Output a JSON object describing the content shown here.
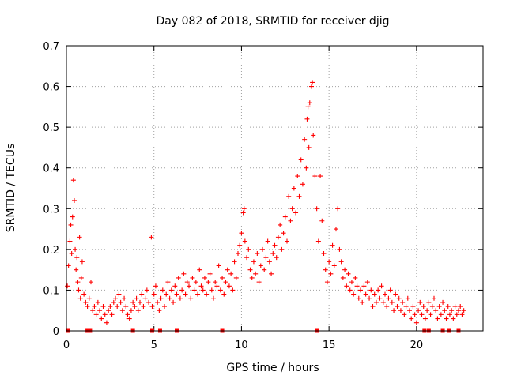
{
  "chart_data": {
    "type": "scatter",
    "title": "Day 082 of 2018, SRMTID for receiver djig",
    "xlabel": "GPS time / hours",
    "ylabel": "SRMTID / TECUs",
    "xlim": [
      0,
      23.8
    ],
    "ylim": [
      0,
      0.7
    ],
    "x_ticks": [
      0,
      5,
      10,
      15,
      20
    ],
    "y_ticks": [
      0,
      0.1,
      0.2,
      0.3,
      0.4,
      0.5,
      0.6,
      0.7
    ],
    "x_tick_labels": [
      "0",
      "5",
      "10",
      "15",
      "20"
    ],
    "y_tick_labels": [
      "0",
      "0.1",
      "0.2",
      "0.3",
      "0.4",
      "0.5",
      "0.6",
      "0.7"
    ],
    "grid": true,
    "marker": "plus",
    "color": "#ff0000",
    "series": [
      {
        "name": "SRMTID",
        "points": [
          [
            0.05,
            0.11
          ],
          [
            0.12,
            0.16
          ],
          [
            0.2,
            0.22
          ],
          [
            0.25,
            0.26
          ],
          [
            0.3,
            0.19
          ],
          [
            0.35,
            0.28
          ],
          [
            0.4,
            0.37
          ],
          [
            0.45,
            0.32
          ],
          [
            0.5,
            0.2
          ],
          [
            0.55,
            0.15
          ],
          [
            0.6,
            0.18
          ],
          [
            0.65,
            0.12
          ],
          [
            0.7,
            0.1
          ],
          [
            0.75,
            0.23
          ],
          [
            0.8,
            0.08
          ],
          [
            0.85,
            0.13
          ],
          [
            0.9,
            0.17
          ],
          [
            1.0,
            0.09
          ],
          [
            1.1,
            0.07
          ],
          [
            1.2,
            0.06
          ],
          [
            1.3,
            0.08
          ],
          [
            1.4,
            0.12
          ],
          [
            1.5,
            0.05
          ],
          [
            1.6,
            0.06
          ],
          [
            1.7,
            0.04
          ],
          [
            1.8,
            0.07
          ],
          [
            1.9,
            0.05
          ],
          [
            2.0,
            0.03
          ],
          [
            2.1,
            0.06
          ],
          [
            2.2,
            0.04
          ],
          [
            2.3,
            0.02
          ],
          [
            2.4,
            0.05
          ],
          [
            2.5,
            0.06
          ],
          [
            2.6,
            0.04
          ],
          [
            2.7,
            0.07
          ],
          [
            2.8,
            0.08
          ],
          [
            2.9,
            0.06
          ],
          [
            3.0,
            0.09
          ],
          [
            3.1,
            0.07
          ],
          [
            3.2,
            0.05
          ],
          [
            3.3,
            0.08
          ],
          [
            3.4,
            0.06
          ],
          [
            3.5,
            0.04
          ],
          [
            3.6,
            0.03
          ],
          [
            3.7,
            0.05
          ],
          [
            3.8,
            0.07
          ],
          [
            3.9,
            0.06
          ],
          [
            4.0,
            0.08
          ],
          [
            4.1,
            0.05
          ],
          [
            4.2,
            0.07
          ],
          [
            4.3,
            0.09
          ],
          [
            4.4,
            0.06
          ],
          [
            4.5,
            0.08
          ],
          [
            4.6,
            0.1
          ],
          [
            4.7,
            0.07
          ],
          [
            4.85,
            0.23
          ],
          [
            4.9,
            0.06
          ],
          [
            5.0,
            0.09
          ],
          [
            5.1,
            0.11
          ],
          [
            5.2,
            0.07
          ],
          [
            5.3,
            0.05
          ],
          [
            5.4,
            0.08
          ],
          [
            5.5,
            0.1
          ],
          [
            5.6,
            0.06
          ],
          [
            5.7,
            0.09
          ],
          [
            5.8,
            0.12
          ],
          [
            5.9,
            0.08
          ],
          [
            6.0,
            0.1
          ],
          [
            6.1,
            0.07
          ],
          [
            6.2,
            0.11
          ],
          [
            6.3,
            0.09
          ],
          [
            6.4,
            0.13
          ],
          [
            6.5,
            0.08
          ],
          [
            6.6,
            0.1
          ],
          [
            6.7,
            0.14
          ],
          [
            6.8,
            0.09
          ],
          [
            6.9,
            0.12
          ],
          [
            7.0,
            0.11
          ],
          [
            7.1,
            0.08
          ],
          [
            7.2,
            0.13
          ],
          [
            7.3,
            0.1
          ],
          [
            7.4,
            0.12
          ],
          [
            7.5,
            0.09
          ],
          [
            7.6,
            0.15
          ],
          [
            7.7,
            0.11
          ],
          [
            7.8,
            0.1
          ],
          [
            7.9,
            0.13
          ],
          [
            8.0,
            0.09
          ],
          [
            8.1,
            0.12
          ],
          [
            8.2,
            0.14
          ],
          [
            8.3,
            0.1
          ],
          [
            8.4,
            0.08
          ],
          [
            8.5,
            0.12
          ],
          [
            8.6,
            0.11
          ],
          [
            8.7,
            0.16
          ],
          [
            8.8,
            0.1
          ],
          [
            8.9,
            0.13
          ],
          [
            9.0,
            0.09
          ],
          [
            9.1,
            0.12
          ],
          [
            9.2,
            0.15
          ],
          [
            9.3,
            0.11
          ],
          [
            9.4,
            0.14
          ],
          [
            9.5,
            0.1
          ],
          [
            9.6,
            0.17
          ],
          [
            9.7,
            0.13
          ],
          [
            9.8,
            0.19
          ],
          [
            9.9,
            0.21
          ],
          [
            10.0,
            0.24
          ],
          [
            10.1,
            0.29
          ],
          [
            10.15,
            0.3
          ],
          [
            10.2,
            0.22
          ],
          [
            10.3,
            0.18
          ],
          [
            10.4,
            0.2
          ],
          [
            10.5,
            0.15
          ],
          [
            10.6,
            0.13
          ],
          [
            10.7,
            0.17
          ],
          [
            10.8,
            0.14
          ],
          [
            10.9,
            0.19
          ],
          [
            11.0,
            0.12
          ],
          [
            11.1,
            0.16
          ],
          [
            11.2,
            0.2
          ],
          [
            11.3,
            0.15
          ],
          [
            11.4,
            0.18
          ],
          [
            11.5,
            0.22
          ],
          [
            11.6,
            0.17
          ],
          [
            11.7,
            0.14
          ],
          [
            11.8,
            0.19
          ],
          [
            11.9,
            0.21
          ],
          [
            12.0,
            0.18
          ],
          [
            12.1,
            0.23
          ],
          [
            12.2,
            0.26
          ],
          [
            12.3,
            0.2
          ],
          [
            12.4,
            0.24
          ],
          [
            12.5,
            0.28
          ],
          [
            12.6,
            0.22
          ],
          [
            12.7,
            0.33
          ],
          [
            12.8,
            0.27
          ],
          [
            12.9,
            0.3
          ],
          [
            13.0,
            0.35
          ],
          [
            13.1,
            0.29
          ],
          [
            13.2,
            0.38
          ],
          [
            13.3,
            0.33
          ],
          [
            13.4,
            0.42
          ],
          [
            13.5,
            0.36
          ],
          [
            13.6,
            0.47
          ],
          [
            13.7,
            0.4
          ],
          [
            13.75,
            0.52
          ],
          [
            13.8,
            0.55
          ],
          [
            13.85,
            0.45
          ],
          [
            13.9,
            0.56
          ],
          [
            14.0,
            0.6
          ],
          [
            14.05,
            0.61
          ],
          [
            14.1,
            0.48
          ],
          [
            14.2,
            0.38
          ],
          [
            14.3,
            0.3
          ],
          [
            14.4,
            0.22
          ],
          [
            14.5,
            0.38
          ],
          [
            14.6,
            0.27
          ],
          [
            14.7,
            0.19
          ],
          [
            14.8,
            0.15
          ],
          [
            14.9,
            0.12
          ],
          [
            15.0,
            0.17
          ],
          [
            15.1,
            0.14
          ],
          [
            15.2,
            0.21
          ],
          [
            15.3,
            0.16
          ],
          [
            15.4,
            0.25
          ],
          [
            15.5,
            0.3
          ],
          [
            15.6,
            0.2
          ],
          [
            15.7,
            0.17
          ],
          [
            15.8,
            0.13
          ],
          [
            15.9,
            0.15
          ],
          [
            16.0,
            0.11
          ],
          [
            16.1,
            0.14
          ],
          [
            16.2,
            0.1
          ],
          [
            16.3,
            0.12
          ],
          [
            16.4,
            0.09
          ],
          [
            16.5,
            0.13
          ],
          [
            16.6,
            0.11
          ],
          [
            16.7,
            0.08
          ],
          [
            16.8,
            0.1
          ],
          [
            16.9,
            0.07
          ],
          [
            17.0,
            0.11
          ],
          [
            17.1,
            0.09
          ],
          [
            17.2,
            0.12
          ],
          [
            17.3,
            0.08
          ],
          [
            17.4,
            0.1
          ],
          [
            17.5,
            0.06
          ],
          [
            17.6,
            0.09
          ],
          [
            17.7,
            0.07
          ],
          [
            17.8,
            0.1
          ],
          [
            17.9,
            0.08
          ],
          [
            18.0,
            0.11
          ],
          [
            18.1,
            0.07
          ],
          [
            18.2,
            0.09
          ],
          [
            18.3,
            0.06
          ],
          [
            18.4,
            0.08
          ],
          [
            18.5,
            0.1
          ],
          [
            18.6,
            0.07
          ],
          [
            18.7,
            0.05
          ],
          [
            18.8,
            0.09
          ],
          [
            18.9,
            0.06
          ],
          [
            19.0,
            0.08
          ],
          [
            19.1,
            0.05
          ],
          [
            19.2,
            0.07
          ],
          [
            19.3,
            0.04
          ],
          [
            19.4,
            0.06
          ],
          [
            19.5,
            0.08
          ],
          [
            19.6,
            0.05
          ],
          [
            19.7,
            0.03
          ],
          [
            19.8,
            0.06
          ],
          [
            19.9,
            0.04
          ],
          [
            20.0,
            0.02
          ],
          [
            20.1,
            0.05
          ],
          [
            20.2,
            0.07
          ],
          [
            20.3,
            0.04
          ],
          [
            20.4,
            0.06
          ],
          [
            20.5,
            0.03
          ],
          [
            20.6,
            0.05
          ],
          [
            20.7,
            0.07
          ],
          [
            20.8,
            0.04
          ],
          [
            20.9,
            0.06
          ],
          [
            21.0,
            0.08
          ],
          [
            21.1,
            0.05
          ],
          [
            21.2,
            0.03
          ],
          [
            21.3,
            0.06
          ],
          [
            21.4,
            0.04
          ],
          [
            21.5,
            0.07
          ],
          [
            21.6,
            0.05
          ],
          [
            21.7,
            0.03
          ],
          [
            21.8,
            0.06
          ],
          [
            21.9,
            0.04
          ],
          [
            22.0,
            0.05
          ],
          [
            22.1,
            0.03
          ],
          [
            22.2,
            0.06
          ],
          [
            22.3,
            0.04
          ],
          [
            22.4,
            0.05
          ],
          [
            22.5,
            0.06
          ],
          [
            22.6,
            0.04
          ],
          [
            22.7,
            0.05
          ]
        ]
      }
    ],
    "zero_markers_x": [
      0.1,
      1.2,
      1.35,
      3.8,
      4.9,
      5.35,
      6.3,
      8.9,
      14.3,
      20.45,
      20.7,
      21.5,
      21.85,
      22.4
    ]
  }
}
